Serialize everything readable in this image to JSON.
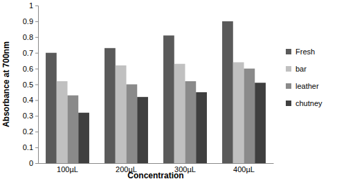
{
  "chart_data": {
    "type": "bar",
    "x_label": "Concentration",
    "y_label": "Absorbance at 700nm",
    "categories": [
      "100µL",
      "200µL",
      "300µL",
      "400µL"
    ],
    "series": [
      {
        "name": "Fresh",
        "color": "#5a5a5a",
        "values": [
          0.7,
          0.73,
          0.81,
          0.9
        ]
      },
      {
        "name": "bar",
        "color": "#c0c0c0",
        "values": [
          0.52,
          0.62,
          0.63,
          0.64
        ]
      },
      {
        "name": "leather",
        "color": "#8a8a8a",
        "values": [
          0.43,
          0.5,
          0.52,
          0.6
        ]
      },
      {
        "name": "chutney",
        "color": "#3f3f3f",
        "values": [
          0.32,
          0.42,
          0.45,
          0.51
        ]
      }
    ],
    "ylim": [
      0,
      1
    ],
    "yticks": [
      0,
      0.1,
      0.2,
      0.3,
      0.4,
      0.5,
      0.6,
      0.7,
      0.8,
      0.9,
      1
    ],
    "grid": false,
    "legend": "right"
  }
}
